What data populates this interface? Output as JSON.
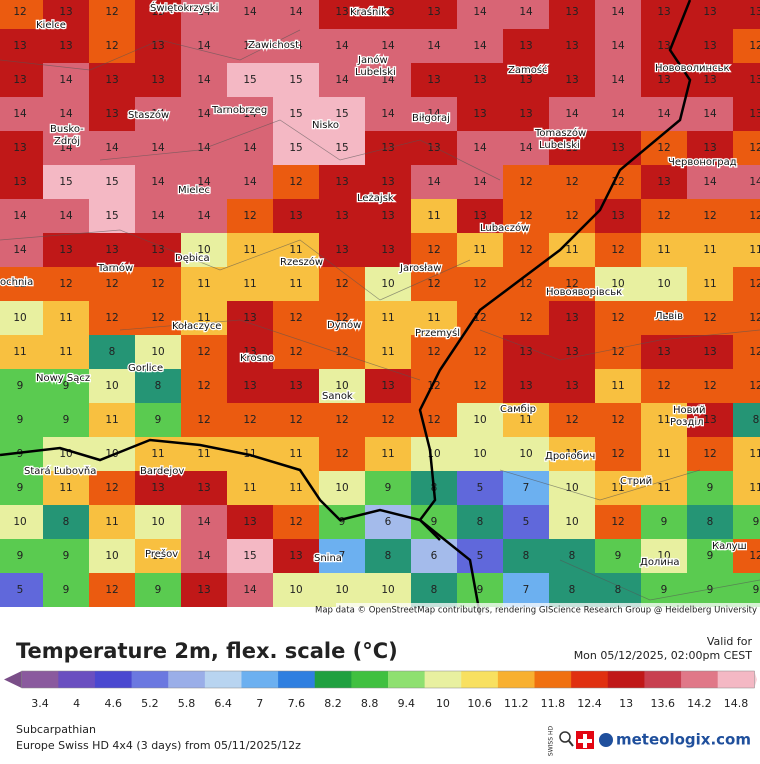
{
  "map": {
    "grid": [
      [
        12,
        13,
        12,
        13,
        14,
        14,
        14,
        13,
        13,
        13,
        14,
        14,
        13,
        14,
        13,
        13,
        13
      ],
      [
        13,
        13,
        12,
        13,
        14,
        14,
        14,
        14,
        14,
        14,
        14,
        13,
        13,
        14,
        13,
        13,
        12
      ],
      [
        13,
        14,
        13,
        13,
        14,
        15,
        15,
        14,
        14,
        13,
        13,
        13,
        13,
        14,
        13,
        13,
        13
      ],
      [
        14,
        14,
        13,
        14,
        14,
        14,
        15,
        15,
        14,
        14,
        13,
        13,
        14,
        14,
        14,
        14,
        13
      ],
      [
        13,
        14,
        14,
        14,
        14,
        14,
        15,
        15,
        13,
        13,
        14,
        14,
        13,
        13,
        12,
        13,
        12
      ],
      [
        13,
        15,
        15,
        14,
        14,
        14,
        12,
        13,
        13,
        14,
        14,
        12,
        12,
        12,
        13,
        14,
        14
      ],
      [
        14,
        14,
        15,
        14,
        14,
        12,
        13,
        13,
        13,
        11,
        13,
        12,
        12,
        13,
        12,
        12,
        12
      ],
      [
        14,
        13,
        13,
        13,
        10,
        11,
        11,
        13,
        13,
        12,
        11,
        12,
        11,
        12,
        11,
        11,
        11
      ],
      [
        12,
        12,
        12,
        12,
        11,
        11,
        11,
        12,
        10,
        12,
        12,
        12,
        12,
        10,
        10,
        11,
        12
      ],
      [
        10,
        11,
        12,
        12,
        11,
        13,
        12,
        12,
        11,
        11,
        12,
        12,
        13,
        12,
        12,
        12,
        12
      ],
      [
        11,
        11,
        8,
        10,
        12,
        13,
        12,
        12,
        11,
        12,
        12,
        13,
        13,
        12,
        13,
        13,
        12
      ],
      [
        9,
        9,
        10,
        8,
        12,
        13,
        13,
        10,
        13,
        12,
        12,
        13,
        13,
        11,
        12,
        12,
        12
      ],
      [
        9,
        9,
        11,
        9,
        12,
        12,
        12,
        12,
        12,
        12,
        10,
        11,
        12,
        12,
        11,
        13,
        8
      ],
      [
        9,
        10,
        10,
        11,
        11,
        11,
        11,
        12,
        11,
        10,
        10,
        10,
        11,
        12,
        11,
        12,
        11
      ],
      [
        9,
        11,
        12,
        13,
        13,
        11,
        11,
        10,
        9,
        8,
        5,
        7,
        10,
        11,
        11,
        9,
        11
      ],
      [
        10,
        8,
        11,
        10,
        14,
        13,
        12,
        9,
        6,
        9,
        8,
        5,
        10,
        12,
        9,
        8,
        9
      ],
      [
        9,
        9,
        10,
        11,
        14,
        15,
        13,
        7,
        8,
        6,
        5,
        8,
        8,
        9,
        10,
        9,
        12
      ],
      [
        5,
        9,
        12,
        9,
        13,
        14,
        10,
        10,
        10,
        8,
        9,
        7,
        8,
        8,
        9,
        9,
        9
      ]
    ],
    "cities": [
      "Kielce",
      "Świętokrzyski",
      "Kraśnik",
      "Zawichost",
      "Janów",
      "Lubelski",
      "Zamość",
      "Нововолинськ",
      "Staszów",
      "Tarnobrzeg",
      "Nisko",
      "Biłgoraj",
      "Busko-",
      "Zdrój",
      "Tomaszów",
      "Lubelski",
      "Червоноград",
      "Mielec",
      "Leżajsk",
      "Lubaczów",
      "Tarnów",
      "Dębica",
      "Rzeszów",
      "Jarosław",
      "Новояворівськ",
      "ochnia",
      "Kołaczyce",
      "Dynów",
      "Przemyśl",
      "Львів",
      "Krosno",
      "Gorlice",
      "Nowy Sącz",
      "Sanok",
      "Самбір",
      "Новий",
      "Розділ",
      "Stará Ľubovňa",
      "Bardejov",
      "Дрогобич",
      "Стрий",
      "Prešov",
      "Snina",
      "Калуш",
      "Долина"
    ],
    "attribution": "Map data © OpenStreetMap contributors, rendering GIScience Research Group @ Heidelberg University"
  },
  "legend": {
    "title": "Temperature 2m, flex. scale (°C)",
    "valid_label": "Valid for",
    "valid_time": "Mon 05/12/2025, 02:00pm CEST",
    "ticks": [
      3.4,
      4,
      4.6,
      5.2,
      5.8,
      6.4,
      7,
      7.6,
      8.2,
      8.8,
      9.4,
      10,
      10.6,
      11.2,
      11.8,
      12.4,
      13,
      13.6,
      14.2,
      14.8
    ],
    "colors": [
      "#8a5a9e",
      "#6a4fc0",
      "#4a48d0",
      "#6b78e0",
      "#9aaee8",
      "#b8d4f0",
      "#6cb0f0",
      "#2f7fe0",
      "#20a040",
      "#40c040",
      "#8ee070",
      "#e8f0a0",
      "#f8e060",
      "#f8b030",
      "#f07010",
      "#e03010",
      "#c01818",
      "#c84050",
      "#e07888",
      "#f4b8c4"
    ]
  },
  "footer": {
    "region": "Subcarpathian",
    "model": "Europe Swiss HD 4x4 (3 days) from  05/11/2025/12z",
    "badge": "SWISS HD",
    "brand": "meteologix.com"
  }
}
